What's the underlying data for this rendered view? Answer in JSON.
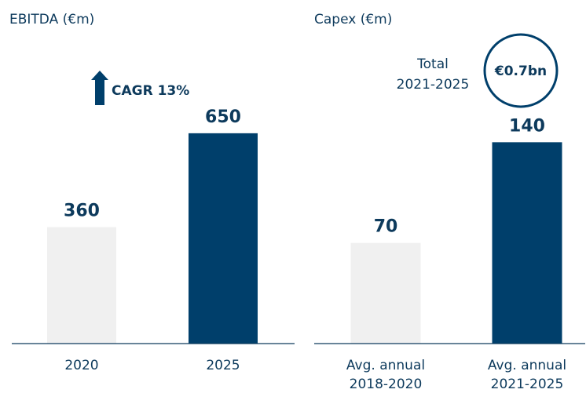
{
  "chart_data": [
    {
      "type": "bar",
      "title": "EBITDA (€m)",
      "categories": [
        [
          "2020"
        ],
        [
          "2025"
        ]
      ],
      "values": [
        360,
        650
      ],
      "colors": [
        "#f0f0f0",
        "#003f6b"
      ],
      "ylim": [
        0,
        800
      ],
      "annotation": "CAGR 13%"
    },
    {
      "type": "bar",
      "title": "Capex (€m)",
      "categories": [
        [
          "Avg. annual",
          "2018-2020"
        ],
        [
          "Avg. annual",
          "2021-2025"
        ]
      ],
      "values": [
        70,
        140
      ],
      "colors": [
        "#f0f0f0",
        "#003f6b"
      ],
      "ylim": [
        0,
        180
      ],
      "annotation": [
        "Total",
        "2021-2025"
      ],
      "callout": "€0.7bn"
    }
  ]
}
